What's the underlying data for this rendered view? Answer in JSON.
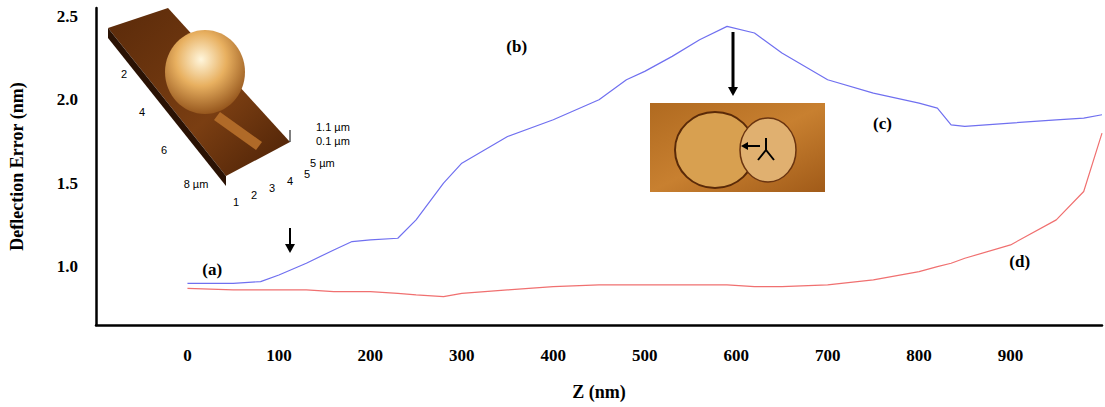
{
  "chart_data": {
    "type": "line",
    "xlabel": "Z (nm)",
    "ylabel": "Deflection Error (nm)",
    "xlim": [
      -100,
      1000
    ],
    "xticks": [
      0,
      100,
      200,
      300,
      400,
      500,
      600,
      700,
      800,
      900
    ],
    "ylim": [
      0.65,
      2.55
    ],
    "yticks": [
      {
        "value": 1,
        "label": "1.0"
      },
      1.5,
      {
        "value": 2,
        "label": "2.0"
      },
      2.5
    ],
    "grid": false,
    "x": [
      0,
      50,
      80,
      100,
      130,
      160,
      180,
      200,
      230,
      250,
      280,
      300,
      350,
      400,
      450,
      480,
      500,
      530,
      560,
      590,
      620,
      650,
      700,
      750,
      800,
      820,
      835,
      850,
      900,
      950,
      980,
      1000
    ],
    "series": [
      {
        "color": "#7070f0",
        "values": [
          0.9,
          0.9,
          0.91,
          0.95,
          1.02,
          1.1,
          1.15,
          1.16,
          1.17,
          1.28,
          1.5,
          1.62,
          1.78,
          1.88,
          2.0,
          2.12,
          2.17,
          2.26,
          2.36,
          2.44,
          2.4,
          2.28,
          2.12,
          2.04,
          1.98,
          1.95,
          1.85,
          1.84,
          1.86,
          1.88,
          1.89,
          1.91
        ]
      },
      {
        "color": "#f07070",
        "values": [
          0.87,
          0.86,
          0.86,
          0.86,
          0.86,
          0.85,
          0.85,
          0.85,
          0.84,
          0.83,
          0.82,
          0.84,
          0.86,
          0.88,
          0.89,
          0.89,
          0.89,
          0.89,
          0.89,
          0.89,
          0.88,
          0.88,
          0.89,
          0.92,
          0.97,
          1.0,
          1.02,
          1.05,
          1.13,
          1.28,
          1.45,
          1.8
        ]
      }
    ],
    "annotations": [
      {
        "text": "(a)",
        "x": 27,
        "y": 0.98
      },
      {
        "text": "(b)",
        "x": 360,
        "y": 2.32
      },
      {
        "text": "(c)",
        "x": 760,
        "y": 1.86
      },
      {
        "text": "(d)",
        "x": 910,
        "y": 1.03
      }
    ],
    "inset_texts": [
      "1.1 µm",
      "0.1 µm",
      "5 µm",
      "2",
      "4",
      "6",
      "8 µm",
      "1",
      "2",
      "3",
      "4",
      "5"
    ]
  }
}
